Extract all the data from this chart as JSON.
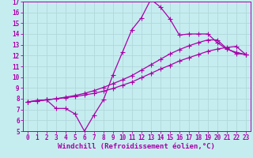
{
  "xlabel": "Windchill (Refroidissement éolien,°C)",
  "xlim": [
    -0.5,
    23.5
  ],
  "ylim": [
    5,
    17
  ],
  "xticks": [
    0,
    1,
    2,
    3,
    4,
    5,
    6,
    7,
    8,
    9,
    10,
    11,
    12,
    13,
    14,
    15,
    16,
    17,
    18,
    19,
    20,
    21,
    22,
    23
  ],
  "yticks": [
    5,
    6,
    7,
    8,
    9,
    10,
    11,
    12,
    13,
    14,
    15,
    16,
    17
  ],
  "background_color": "#c5edef",
  "grid_color": "#b0d8da",
  "line_color": "#aa00aa",
  "line1_x": [
    0,
    1,
    2,
    3,
    4,
    5,
    6,
    7,
    8,
    9,
    10,
    11,
    12,
    13,
    14,
    15,
    16,
    17,
    18,
    19,
    20,
    21,
    22,
    23
  ],
  "line1_y": [
    7.7,
    7.85,
    7.9,
    8.0,
    8.1,
    8.2,
    8.35,
    8.5,
    8.7,
    8.95,
    9.25,
    9.55,
    9.95,
    10.35,
    10.75,
    11.1,
    11.5,
    11.8,
    12.1,
    12.4,
    12.6,
    12.75,
    12.85,
    12.1
  ],
  "line2_x": [
    0,
    1,
    2,
    3,
    4,
    5,
    6,
    7,
    8,
    9,
    10,
    11,
    12,
    13,
    14,
    15,
    16,
    17,
    18,
    19,
    20,
    21,
    22,
    23
  ],
  "line2_y": [
    7.7,
    7.8,
    7.9,
    8.0,
    8.15,
    8.3,
    8.5,
    8.75,
    9.05,
    9.4,
    9.75,
    10.15,
    10.65,
    11.15,
    11.65,
    12.15,
    12.55,
    12.9,
    13.2,
    13.45,
    13.45,
    12.65,
    12.2,
    12.1
  ],
  "line3_x": [
    0,
    1,
    2,
    3,
    4,
    5,
    6,
    7,
    8,
    9,
    10,
    11,
    12,
    13,
    14,
    15,
    16,
    17,
    18,
    19,
    20,
    21,
    22,
    23
  ],
  "line3_y": [
    7.7,
    7.8,
    7.9,
    7.1,
    7.1,
    6.6,
    5.0,
    6.5,
    7.9,
    10.2,
    12.3,
    14.4,
    15.5,
    17.2,
    16.5,
    15.4,
    13.9,
    14.0,
    14.0,
    14.0,
    13.2,
    12.6,
    12.3,
    12.1
  ],
  "marker": "+",
  "markersize": 4,
  "linewidth": 0.9,
  "tick_fontsize": 5.5,
  "xlabel_fontsize": 6.5
}
